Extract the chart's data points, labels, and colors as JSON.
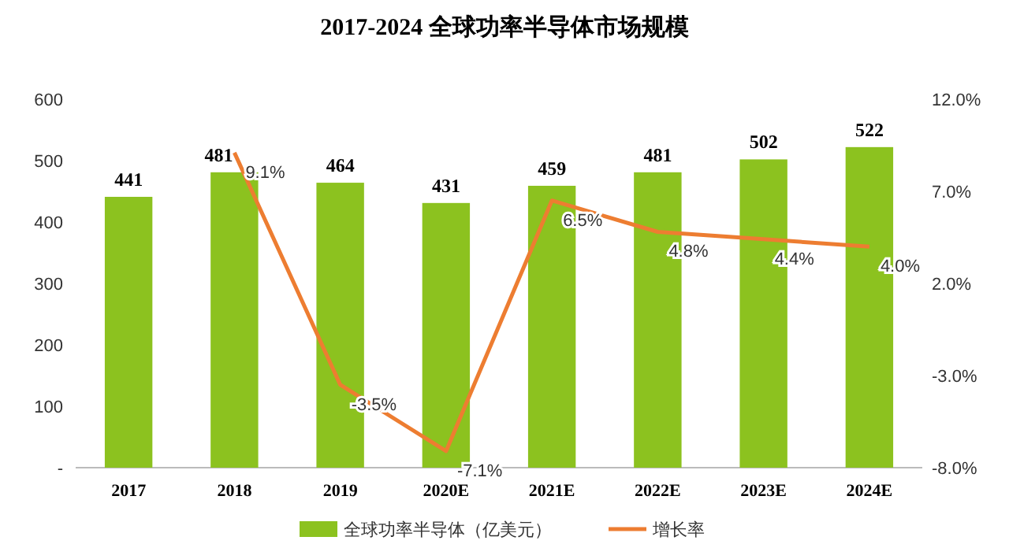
{
  "chart_data": {
    "type": "bar",
    "title": "2017-2024 全球功率半导体市场规模",
    "categories": [
      "2017",
      "2018",
      "2019",
      "2020E",
      "2021E",
      "2022E",
      "2023E",
      "2024E"
    ],
    "series": [
      {
        "name": "全球功率半导体（亿美元）",
        "color": "#8cc21f",
        "values": [
          441,
          481,
          464,
          431,
          459,
          481,
          502,
          522
        ]
      },
      {
        "name": "增长率",
        "type": "line",
        "axis": "y2",
        "color": "#ed7d31",
        "values": [
          null,
          9.1,
          -3.5,
          -7.1,
          6.5,
          4.8,
          4.4,
          4.0
        ],
        "value_labels": [
          null,
          "9.1%",
          "-3.5%",
          "-7.1%",
          "6.5%",
          "4.8%",
          "4.4%",
          "4.0%"
        ]
      }
    ],
    "data_labels": true,
    "ylim": [
      0,
      600
    ],
    "yticks": [
      {
        "value": 0,
        "label": "-"
      },
      100,
      200,
      300,
      400,
      500,
      600
    ],
    "y2lim": [
      -8,
      12
    ],
    "y2ticks": [
      {
        "value": -8,
        "label": "-8.0%"
      },
      {
        "value": -3,
        "label": "-3.0%"
      },
      {
        "value": 2,
        "label": "2.0%"
      },
      {
        "value": 7,
        "label": "7.0%"
      },
      {
        "value": 12,
        "label": "12.0%"
      }
    ],
    "legend": "bottom",
    "grid": false,
    "marker": "none",
    "line_style": "solid"
  }
}
